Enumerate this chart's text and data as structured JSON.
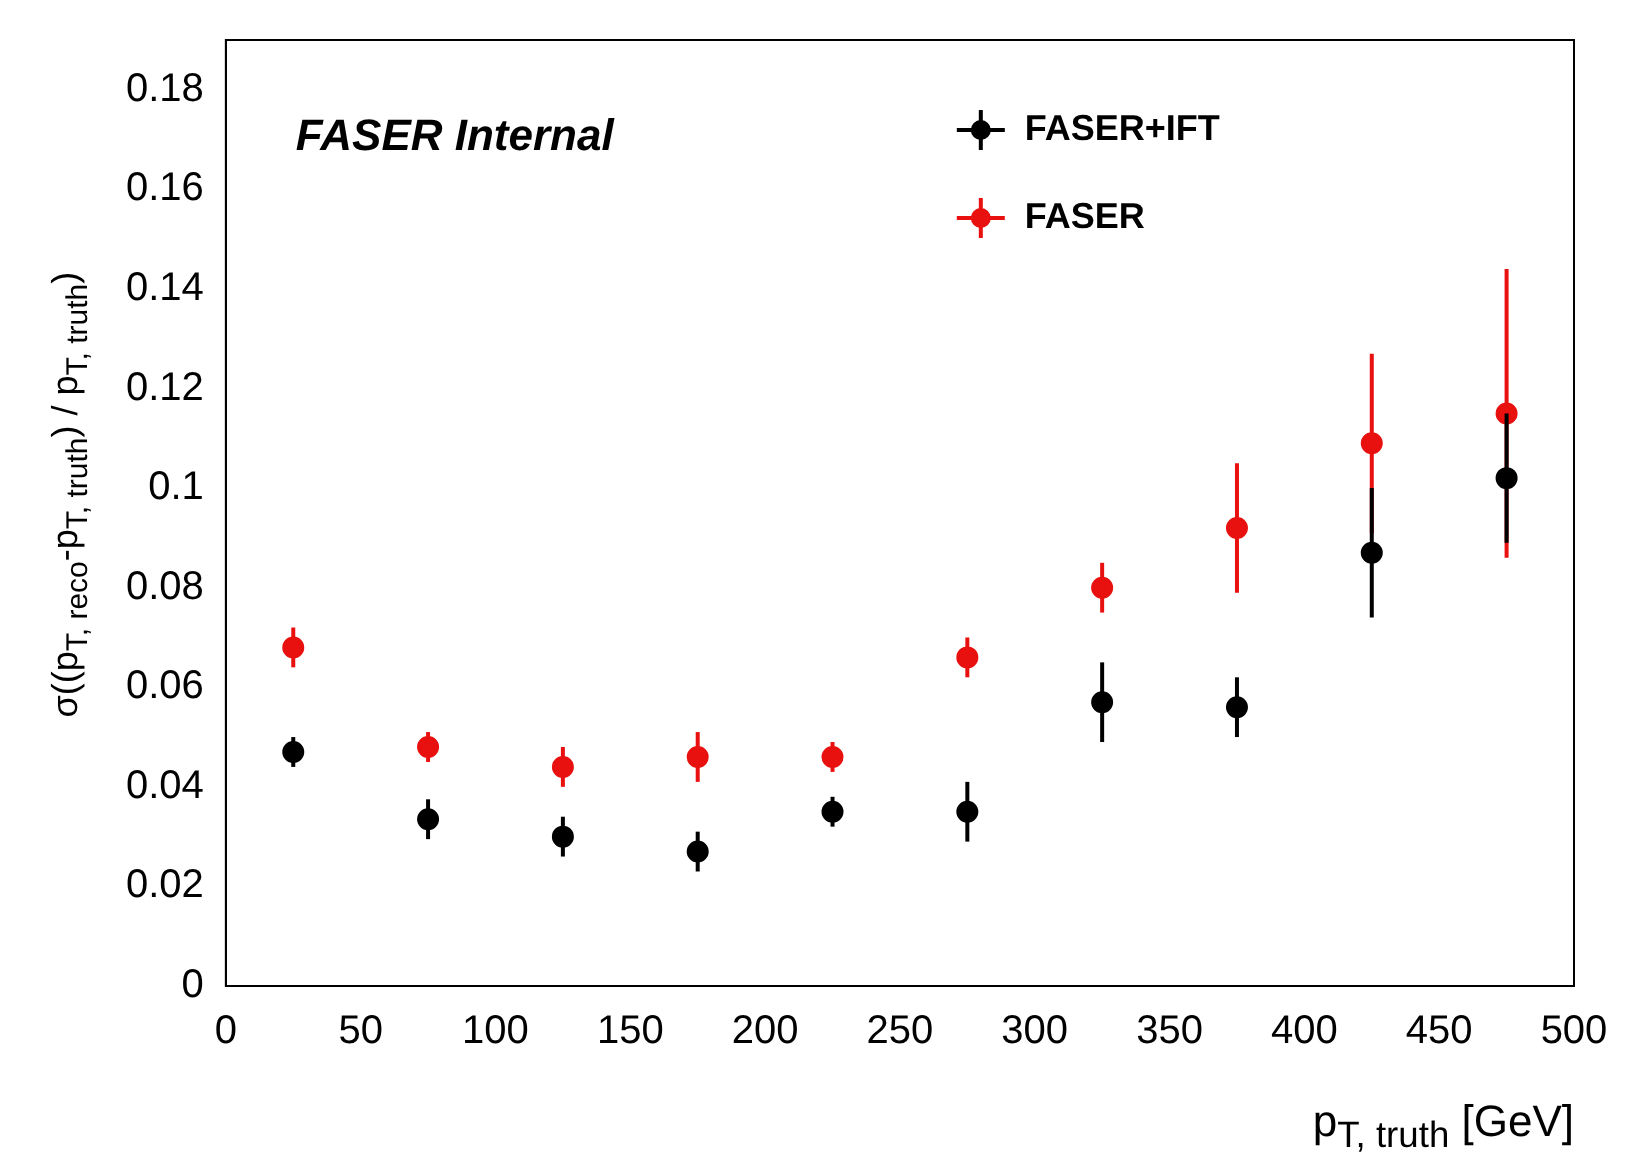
{
  "chart_data": {
    "type": "scatter",
    "xlabel": "p$_{T, truth}$ [GeV]",
    "ylabel": "σ((p$_{T, reco}$-p$_{T, truth}$) / p$_{T, truth}$)",
    "annotations": [
      "FASER Internal"
    ],
    "series": [
      {
        "name": "FASER+IFT",
        "color": "#000000",
        "x": [
          25,
          75,
          125,
          175,
          225,
          275,
          325,
          375,
          425,
          475
        ],
        "values": [
          0.047,
          0.0335,
          0.03,
          0.027,
          0.035,
          0.035,
          0.057,
          0.056,
          0.087,
          0.102
        ],
        "errors": [
          0.003,
          0.004,
          0.004,
          0.004,
          0.003,
          0.006,
          0.008,
          0.006,
          0.013,
          0.013
        ]
      },
      {
        "name": "FASER",
        "color": "#e8110f",
        "x": [
          25,
          75,
          125,
          175,
          225,
          275,
          325,
          375,
          425,
          475
        ],
        "values": [
          0.068,
          0.048,
          0.044,
          0.046,
          0.046,
          0.066,
          0.08,
          0.092,
          0.109,
          0.115
        ],
        "errors": [
          0.004,
          0.003,
          0.004,
          0.005,
          0.003,
          0.004,
          0.005,
          0.013,
          0.018,
          0.029
        ]
      }
    ],
    "xlim": [
      0,
      500
    ],
    "xticks": [
      0,
      50,
      100,
      150,
      200,
      250,
      300,
      350,
      400,
      450,
      500
    ],
    "ylim": [
      0,
      0.19
    ],
    "yticks": [
      0,
      0.02,
      0.04,
      0.06,
      0.08,
      0.1,
      0.12,
      0.14,
      0.16,
      0.18
    ],
    "grid": false,
    "legend": "top right",
    "marker": "circle"
  }
}
